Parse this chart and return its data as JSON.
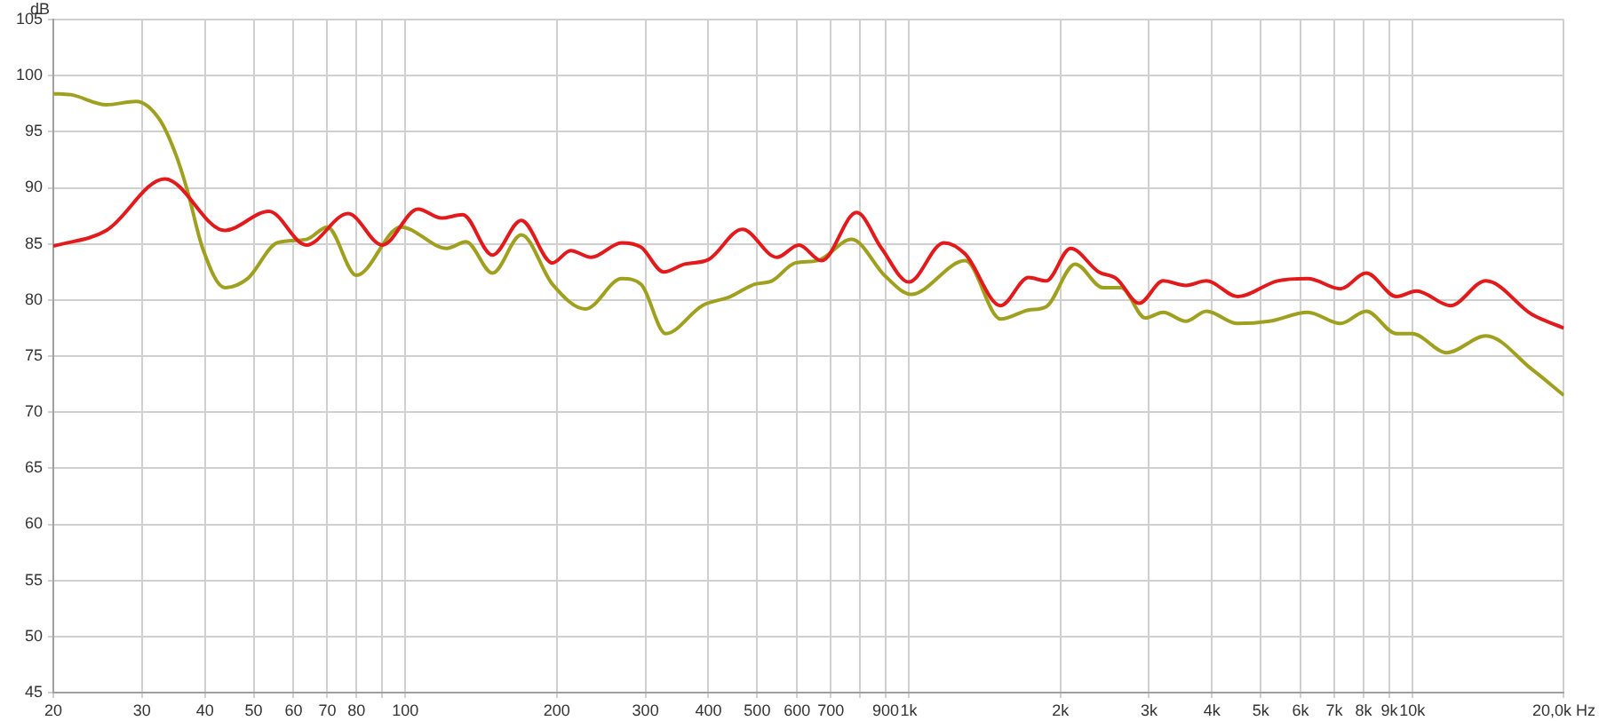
{
  "chart_data": {
    "type": "line",
    "ylabel": "dB",
    "log": "x",
    "grid": true,
    "legend": false,
    "xlim": [
      20,
      20000
    ],
    "xticks": [
      20,
      30,
      40,
      50,
      60,
      70,
      80,
      {
        "value": 90,
        "label": null
      },
      100,
      200,
      300,
      400,
      500,
      600,
      700,
      {
        "value": 800,
        "label": null
      },
      900,
      {
        "value": 1000,
        "label": "1k"
      },
      {
        "value": 2000,
        "label": "2k"
      },
      {
        "value": 3000,
        "label": "3k"
      },
      {
        "value": 4000,
        "label": "4k"
      },
      {
        "value": 5000,
        "label": "5k"
      },
      {
        "value": 6000,
        "label": "6k"
      },
      {
        "value": 7000,
        "label": "7k"
      },
      {
        "value": 8000,
        "label": "8k"
      },
      {
        "value": 9000,
        "label": "9k"
      },
      {
        "value": 10000,
        "label": "10k"
      },
      {
        "value": 20000,
        "label": "20,0k Hz"
      }
    ],
    "ylim": [
      45,
      105
    ],
    "yticks": [
      45,
      50,
      55,
      60,
      65,
      70,
      75,
      80,
      85,
      90,
      95,
      100,
      105
    ],
    "series": [
      {
        "color": "#e31a1c",
        "x": [
          20,
          25.5,
          33.3,
          43.8,
          53.6,
          63.6,
          77,
          90,
          106,
          118,
          130,
          149,
          170,
          196,
          213,
          234,
          269,
          294,
          326,
          359,
          400,
          467,
          547,
          605,
          671,
          788,
          883,
          1000,
          1174,
          1294,
          1522,
          1729,
          1874,
          2096,
          2383,
          2585,
          2867,
          3200,
          3550,
          3900,
          4500,
          5400,
          6200,
          7200,
          8100,
          9300,
          10200,
          11900,
          14000,
          17300,
          20000
        ],
        "values": [
          84.8,
          86.2,
          90.8,
          86.2,
          87.9,
          84.9,
          87.7,
          84.9,
          88.1,
          87.3,
          87.6,
          84.0,
          87.1,
          83.3,
          84.4,
          83.8,
          85.1,
          84.7,
          82.5,
          83.2,
          83.6,
          86.3,
          83.8,
          84.9,
          83.5,
          87.8,
          84.6,
          81.6,
          85.1,
          84.1,
          79.5,
          82.0,
          81.7,
          84.6,
          82.5,
          81.9,
          79.7,
          81.7,
          81.3,
          81.7,
          80.3,
          81.7,
          81.9,
          81.0,
          82.4,
          80.3,
          80.8,
          79.5,
          81.7,
          78.7,
          77.5
        ]
      },
      {
        "color": "#a0a020",
        "x": [
          20,
          21.7,
          25.5,
          29.2,
          32.5,
          35,
          36.9,
          39.6,
          43.8,
          48.6,
          55.7,
          63.6,
          70,
          80,
          98,
          121,
          132,
          149,
          170,
          196,
          228,
          269,
          294,
          329,
          389,
          442,
          494,
          535,
          595,
          658,
          770,
          899,
          1010,
          1294,
          1522,
          1729,
          1874,
          2140,
          2430,
          2640,
          2950,
          3200,
          3550,
          3900,
          4500,
          5200,
          6200,
          7200,
          8100,
          9300,
          10000,
          11700,
          14000,
          17300,
          20000
        ],
        "values": [
          98.4,
          98.3,
          97.4,
          97.7,
          96.1,
          93.0,
          89.8,
          84.6,
          81.1,
          81.9,
          85.1,
          85.4,
          86.5,
          82.2,
          86.5,
          84.6,
          85.2,
          82.4,
          85.8,
          81.4,
          79.2,
          81.9,
          81.4,
          77.0,
          79.5,
          80.3,
          81.4,
          81.7,
          83.3,
          83.5,
          85.4,
          82.1,
          80.5,
          83.5,
          78.3,
          79.1,
          79.4,
          83.2,
          81.1,
          81.1,
          78.4,
          78.9,
          78.1,
          79.0,
          77.9,
          78.1,
          78.9,
          77.9,
          79.0,
          77.0,
          77.0,
          75.3,
          76.8,
          73.8,
          71.5
        ]
      }
    ]
  }
}
